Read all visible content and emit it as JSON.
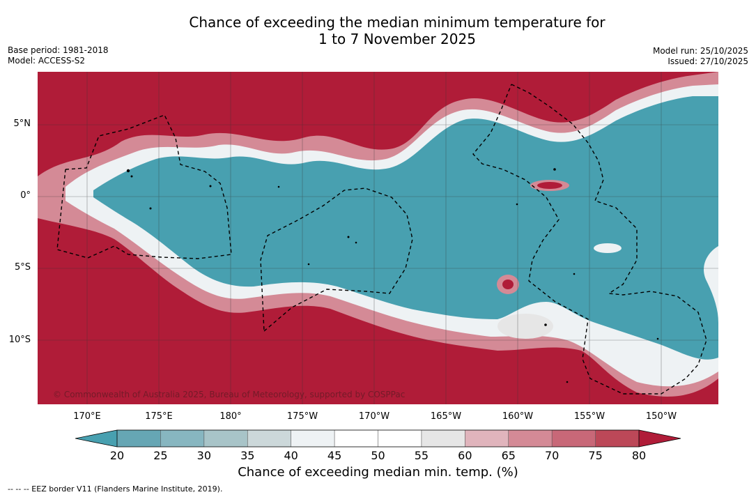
{
  "title": {
    "line1": "Chance of exceeding the median minimum temperature for",
    "line2": "1 to 7 November 2025"
  },
  "meta": {
    "base_period": "Base period: 1981-2018",
    "model": "Model: ACCESS-S2",
    "model_run": "Model run: 25/10/2025",
    "issued": "Issued: 27/10/2025"
  },
  "map": {
    "latitude_labels": [
      "5°N",
      "0°",
      "5°S",
      "10°S"
    ],
    "longitude_labels": [
      "170°E",
      "175°E",
      "180°",
      "175°W",
      "170°W",
      "165°W",
      "160°W",
      "155°W",
      "150°W"
    ],
    "copyright": "© Commonwealth of Australia 2025, Bureau of Meteorology, supported by COSPPac",
    "colors": {
      "ocean_high": "#b01c38",
      "ocean_low": "#48a0b0",
      "white_band": "#ffffff"
    }
  },
  "colorbar": {
    "ticks": [
      "20",
      "25",
      "30",
      "35",
      "40",
      "45",
      "50",
      "55",
      "60",
      "65",
      "70",
      "75",
      "80"
    ],
    "bin_colors": [
      "#48a0b0",
      "#66a6b4",
      "#87b6c0",
      "#a8c4c8",
      "#ccd8da",
      "#eef2f4",
      "#ffffff",
      "#ffffff",
      "#e6e6e6",
      "#e0b4bc",
      "#d48a96",
      "#c86878",
      "#bc4858",
      "#b01c38"
    ],
    "title": "Chance of exceeding median min. temp. (%)"
  },
  "footnote": "-- -- -- EEZ border V11 (Flanders Marine Institute, 2019)."
}
